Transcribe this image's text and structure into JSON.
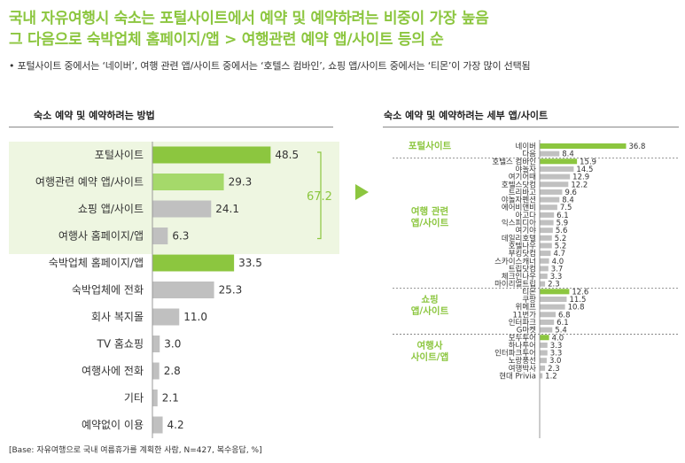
{
  "header": {
    "title_line1": "국내 자유여행시 숙소는 포털사이트에서 예약 및 예약하려는 비중이 가장 높음",
    "title_line2": "그 다음으로 숙박업체 홈페이지/앱 > 여행관련 예약 앱/사이트 등의 순",
    "bullet": "•  포털사이트 중에서는 ‘네이버’, 여행 관련 앱/사이트 중에서는 ‘호텔스 컴바인’, 쇼핑 앱/사이트 중에서는 ‘티몬’이 가장 많이 선택됨"
  },
  "footer": {
    "base": "[Base: 자유여행으로 국내 여름휴가를 계획한 사람, N=427, 복수응답, %]"
  },
  "colors": {
    "accent": "#8cc63f",
    "accent_light": "#a5d96a",
    "gray": "#c0c0c0",
    "highlight_bg": "#eef6e1"
  },
  "chart_data": [
    {
      "type": "bar",
      "title": "숙소 예약 및 예약하려는 방법",
      "categories": [
        "포털사이트",
        "여행관련 예약 앱/사이트",
        "쇼핑 앱/사이트",
        "여행사 홈페이지/앱",
        "숙박업체 홈페이지/앱",
        "숙박업체에 전화",
        "회사 복지몰",
        "TV 홈쇼핑",
        "여행사에 전화",
        "기타",
        "예약없이 이용"
      ],
      "values": [
        48.5,
        29.3,
        24.1,
        6.3,
        33.5,
        25.3,
        11.0,
        3.0,
        2.8,
        2.1,
        4.2
      ],
      "value_labels": [
        "48.5",
        "29.3",
        "24.1",
        "6.3",
        "33.5",
        "25.3",
        "11.0",
        "3.0",
        "2.8",
        "2.1",
        "4.2"
      ],
      "highlight": [
        "accent",
        "accent_light",
        "gray",
        "gray",
        "accent",
        "gray",
        "gray",
        "gray",
        "gray",
        "gray",
        "gray"
      ],
      "bracket_total": "67.2"
    },
    {
      "type": "bar",
      "title": "숙소 예약 및 예약하려는 세부 앱/사이트",
      "groups": [
        {
          "label": [
            "포털사이트"
          ],
          "items": [
            {
              "name": "네이버",
              "value": 36.8,
              "label": "36.8",
              "top": true
            },
            {
              "name": "다음",
              "value": 8.4,
              "label": "8.4"
            }
          ]
        },
        {
          "label": [
            "여행 관련",
            "앱/사이트"
          ],
          "items": [
            {
              "name": "호텔스 컴바인",
              "value": 15.9,
              "label": "15.9",
              "top": true
            },
            {
              "name": "야놀자",
              "value": 14.5,
              "label": "14.5"
            },
            {
              "name": "여기어때",
              "value": 12.9,
              "label": "12.9"
            },
            {
              "name": "호텔스닷컴",
              "value": 12.2,
              "label": "12.2"
            },
            {
              "name": "트리바고",
              "value": 9.6,
              "label": "9.6"
            },
            {
              "name": "야놀자펜션",
              "value": 8.4,
              "label": "8.4"
            },
            {
              "name": "에어비앤비",
              "value": 7.5,
              "label": "7.5"
            },
            {
              "name": "아고다",
              "value": 6.1,
              "label": "6.1"
            },
            {
              "name": "익스피디아",
              "value": 5.9,
              "label": "5.9"
            },
            {
              "name": "여기야",
              "value": 5.6,
              "label": "5.6"
            },
            {
              "name": "데일리호텔",
              "value": 5.2,
              "label": "5.2"
            },
            {
              "name": "호텔나우",
              "value": 5.2,
              "label": "5.2"
            },
            {
              "name": "부킹닷컴",
              "value": 4.7,
              "label": "4.7"
            },
            {
              "name": "스카이스캐너",
              "value": 4.0,
              "label": "4.0"
            },
            {
              "name": "트립닷컴",
              "value": 3.7,
              "label": "3.7"
            },
            {
              "name": "체크인나우",
              "value": 3.3,
              "label": "3.3"
            },
            {
              "name": "마이리얼트립",
              "value": 2.3,
              "label": "2.3"
            }
          ]
        },
        {
          "label": [
            "쇼핑",
            "앱/사이트"
          ],
          "items": [
            {
              "name": "티몬",
              "value": 12.6,
              "label": "12.6",
              "top": true
            },
            {
              "name": "쿠팡",
              "value": 11.5,
              "label": "11.5"
            },
            {
              "name": "위메프",
              "value": 10.8,
              "label": "10.8"
            },
            {
              "name": "11번가",
              "value": 6.8,
              "label": "6.8"
            },
            {
              "name": "인터파크",
              "value": 6.1,
              "label": "6.1"
            },
            {
              "name": "G마켓",
              "value": 5.4,
              "label": "5.4"
            }
          ]
        },
        {
          "label": [
            "여행사",
            "사이트/앱"
          ],
          "items": [
            {
              "name": "모두투어",
              "value": 4.0,
              "label": "4.0",
              "top": true
            },
            {
              "name": "하나투어",
              "value": 3.3,
              "label": "3.3"
            },
            {
              "name": "인터파크투어",
              "value": 3.3,
              "label": "3.3"
            },
            {
              "name": "노랑풍선",
              "value": 3.0,
              "label": "3.0"
            },
            {
              "name": "여행박사",
              "value": 2.3,
              "label": "2.3"
            },
            {
              "name": "현대 Privia",
              "value": 1.2,
              "label": "1.2"
            }
          ]
        }
      ]
    }
  ]
}
